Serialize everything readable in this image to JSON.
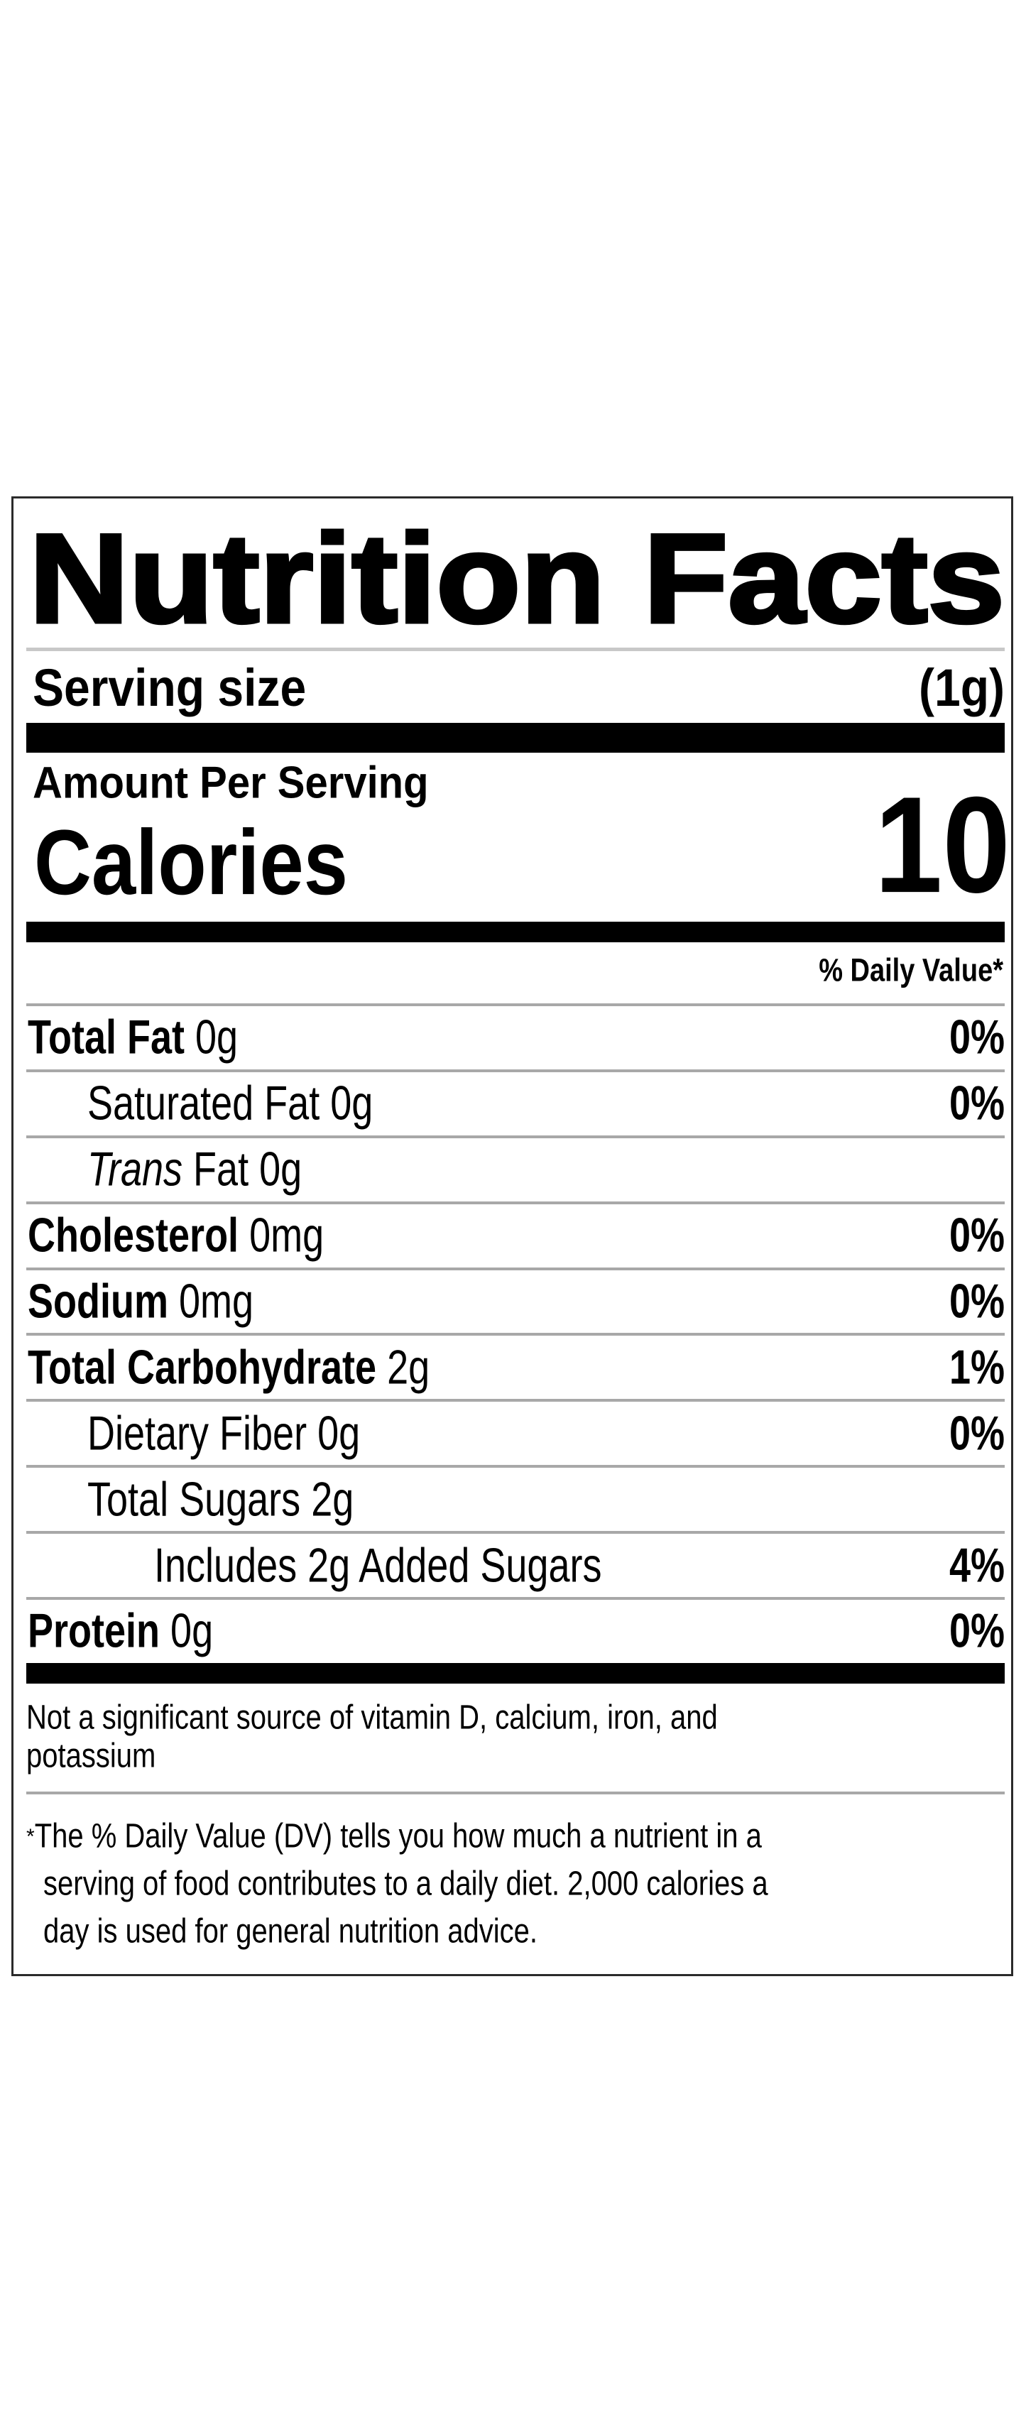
{
  "label": {
    "title": "Nutrition Facts",
    "serving_size_label": "Serving size",
    "serving_size_value": "(1g)",
    "amount_per_serving": "Amount Per Serving",
    "calories_label": "Calories",
    "calories_value": "10",
    "daily_value_header": "% Daily Value*",
    "rows": [
      {
        "name": "Total Fat",
        "amount": "0g",
        "dv": "0%"
      },
      {
        "name": "Saturated Fat",
        "amount": "0g",
        "dv": "0%"
      },
      {
        "name_italic": "Trans",
        "name": "Fat",
        "amount": "0g",
        "dv": ""
      },
      {
        "name": "Cholesterol",
        "amount": "0mg",
        "dv": "0%"
      },
      {
        "name": "Sodium",
        "amount": "0mg",
        "dv": "0%"
      },
      {
        "name": "Total Carbohydrate",
        "amount": "2g",
        "dv": "1%"
      },
      {
        "name": "Dietary Fiber",
        "amount": "0g",
        "dv": "0%"
      },
      {
        "name": "Total Sugars",
        "amount": "2g",
        "dv": ""
      },
      {
        "name": "Includes 2g Added Sugars",
        "amount": "",
        "dv": "4%"
      },
      {
        "name": "Protein",
        "amount": "0g",
        "dv": "0%"
      }
    ],
    "not_significant_line1": "Not a significant source of vitamin D, calcium, iron, and",
    "not_significant_line2": "potassium",
    "footnote_star": "*",
    "footnote_line1": "The % Daily Value (DV) tells you how much a nutrient in a",
    "footnote_line2": "serving of food contributes to a daily diet. 2,000 calories a",
    "footnote_line3": "day is used for general nutrition advice."
  }
}
